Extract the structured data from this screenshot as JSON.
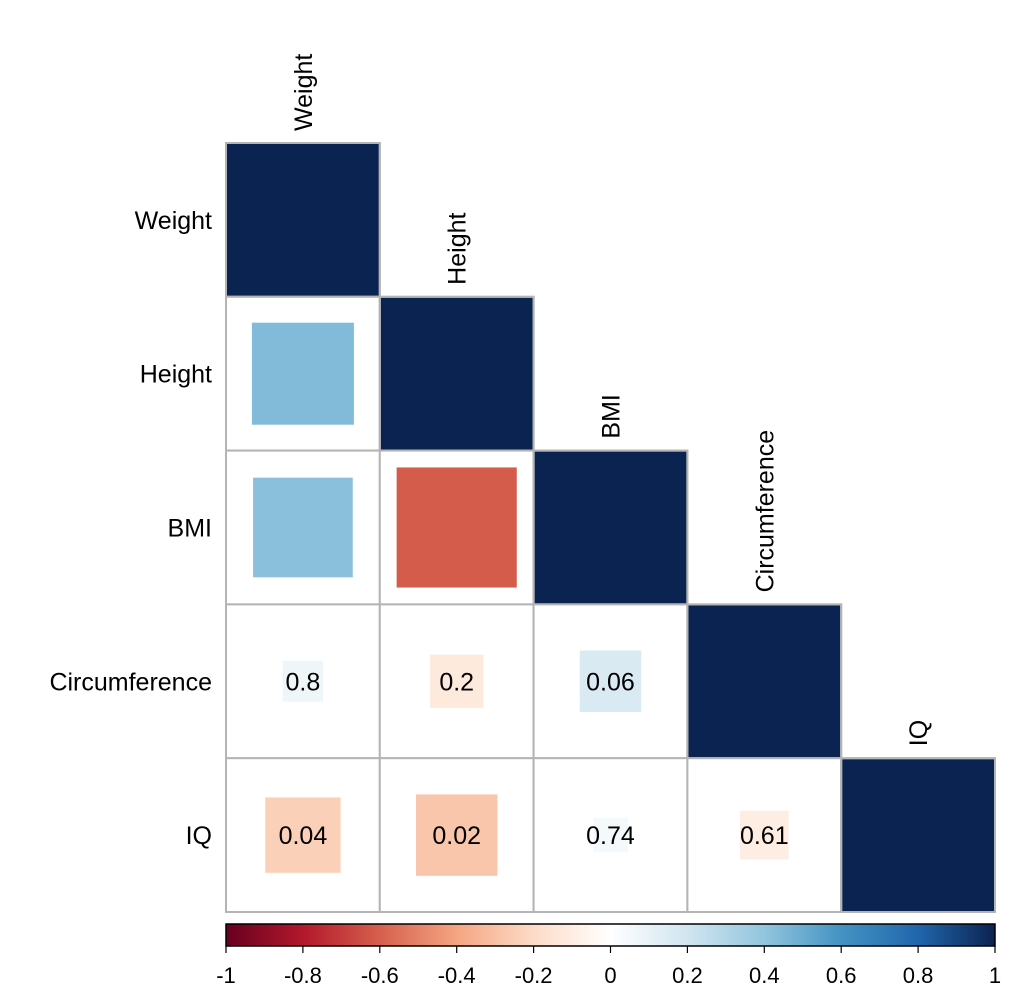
{
  "chart_data": {
    "type": "heatmap",
    "subtype": "correlation-matrix-lower-triangle",
    "variables": [
      "Weight",
      "Height",
      "BMI",
      "Circumference",
      "IQ"
    ],
    "correlations": [
      [
        1,
        null,
        null,
        null,
        null
      ],
      [
        0.44,
        1,
        null,
        null,
        null
      ],
      [
        0.42,
        -0.61,
        1,
        null,
        null
      ],
      [
        0.07,
        -0.12,
        0.16,
        1,
        null
      ],
      [
        -0.24,
        -0.28,
        0.05,
        -0.1,
        1
      ]
    ],
    "cell_labels": [
      [
        null,
        null,
        null,
        null,
        null
      ],
      [
        null,
        null,
        null,
        null,
        null
      ],
      [
        null,
        null,
        null,
        null,
        null
      ],
      [
        "0.8",
        "0.2",
        "0.06",
        null,
        null
      ],
      [
        "0.04",
        "0.02",
        "0.74",
        "0.61",
        null
      ]
    ],
    "colorbar": {
      "range": [
        -1,
        1
      ],
      "ticks": [
        "-1",
        "-0.8",
        "-0.6",
        "-0.4",
        "-0.2",
        "0",
        "0.2",
        "0.4",
        "0.6",
        "0.8",
        "1"
      ],
      "colors": [
        "#67001F",
        "#B2182B",
        "#D6604D",
        "#F4A582",
        "#FDDBC7",
        "#FFFFFF",
        "#D1E5F0",
        "#92C5DE",
        "#4393C3",
        "#2166AC",
        "#0B2350"
      ],
      "placement": "bottom"
    }
  }
}
